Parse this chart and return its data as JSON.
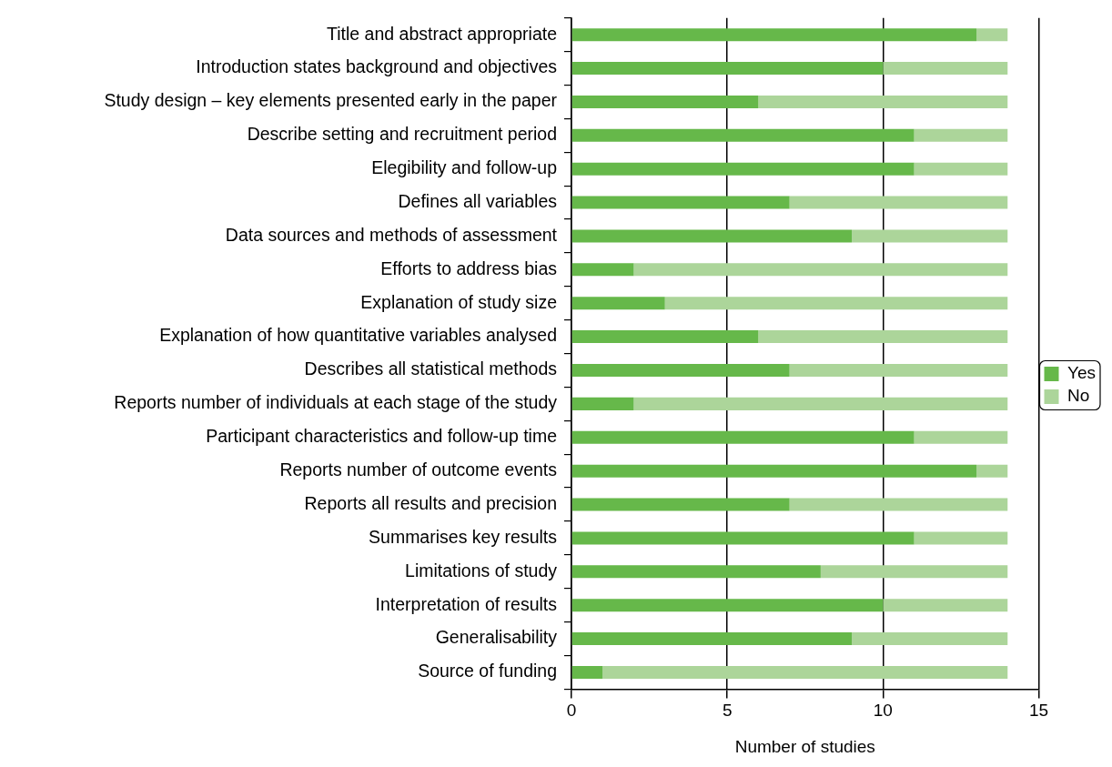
{
  "chart_data": {
    "type": "bar",
    "orientation": "horizontal",
    "stacked": true,
    "xlabel": "Number of studies",
    "categories": [
      "Title and abstract appropriate",
      "Introduction states background and objectives",
      "Study design – key elements presented early in the paper",
      "Describe setting and recruitment period",
      "Elegibility and follow-up",
      "Defines all variables",
      "Data sources and methods of assessment",
      "Efforts to address bias",
      "Explanation of study size",
      "Explanation of how quantitative variables analysed",
      "Describes all statistical methods",
      "Reports number of individuals at each stage of the study",
      "Participant characteristics and follow-up time",
      "Reports number of outcome events",
      "Reports all results and precision",
      "Summarises key results",
      "Limitations of study",
      "Interpretation of results",
      "Generalisability",
      "Source of funding"
    ],
    "series": [
      {
        "name": "Yes",
        "color": "#66b84a",
        "values": [
          13,
          10,
          6,
          11,
          11,
          7,
          9,
          2,
          3,
          6,
          7,
          2,
          11,
          13,
          7,
          11,
          8,
          10,
          9,
          1
        ]
      },
      {
        "name": "No",
        "color": "#acd59a",
        "values": [
          1,
          4,
          8,
          3,
          3,
          7,
          5,
          12,
          11,
          8,
          7,
          12,
          3,
          1,
          7,
          3,
          6,
          4,
          5,
          13
        ]
      }
    ],
    "xlim": [
      0,
      15
    ],
    "xticks": [
      0,
      5,
      10,
      15
    ],
    "grid": "x",
    "legend": "right"
  }
}
